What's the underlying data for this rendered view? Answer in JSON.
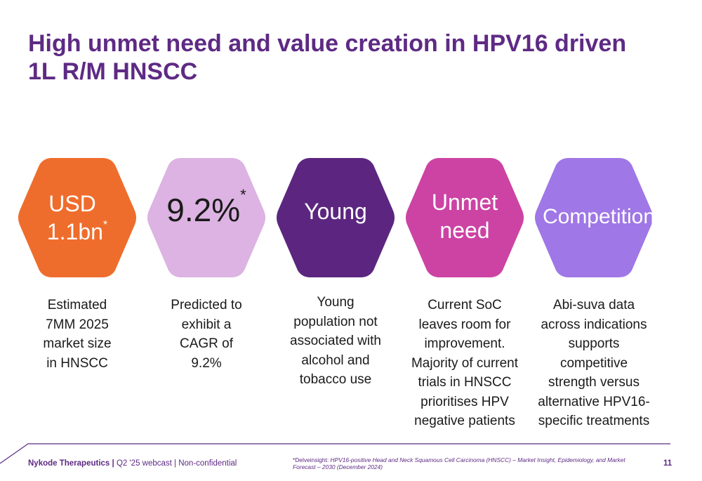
{
  "slide": {
    "title_lines": [
      "High unmet need and value creation in HPV16 driven",
      "1L R/M HNSCC"
    ]
  },
  "cards": [
    {
      "hex_lines": [
        "USD",
        "1.1bn"
      ],
      "hex_sup": "*",
      "hex_color": "#ef6d2c",
      "text_color": "#ffffff",
      "desc_lines": [
        "Estimated",
        "7MM 2025",
        "market size",
        "in HNSCC"
      ]
    },
    {
      "hex_lines": [
        "9.2%"
      ],
      "hex_sup": "*",
      "hex_color": "#dcb3e2",
      "text_color": "#1a1a1a",
      "desc_lines": [
        "Predicted to",
        "exhibit a",
        "CAGR of",
        "9.2%"
      ]
    },
    {
      "hex_lines": [
        "Young"
      ],
      "hex_color": "#5c2680",
      "text_color": "#ffffff",
      "desc_lines": [
        "Young",
        "population not",
        "associated with",
        "alcohol and",
        "tobacco use"
      ]
    },
    {
      "hex_lines": [
        "Unmet",
        "need"
      ],
      "hex_color": "#cc43a4",
      "text_color": "#ffffff",
      "desc_lines": [
        "Current SoC",
        "leaves room for",
        "improvement.",
        "Majority of current",
        "trials in HNSCC",
        "prioritises HPV",
        "negative patients"
      ]
    },
    {
      "hex_lines": [
        "Competition"
      ],
      "hex_color": "#9f77e6",
      "text_color": "#ffffff",
      "desc_lines": [
        "Abi-suva data",
        "across indications",
        "supports",
        "competitive",
        "strength versus",
        "alternative HPV16-",
        "specific treatments"
      ]
    }
  ],
  "footer": {
    "company": "Nykode Therapeutics",
    "separator": " | ",
    "info": "Q2 '25 webcast | Non-confidential",
    "source_prefix": "*Delveinsight: ",
    "source_italic": "HPV16-positive Head and Neck Squamous Cell Carcinoma (HNSCC) – Market Insight, Epidemiology, and Market Forecast – 2030 (December 2024)",
    "page_number": "11",
    "line_color": "#5e2a84"
  }
}
